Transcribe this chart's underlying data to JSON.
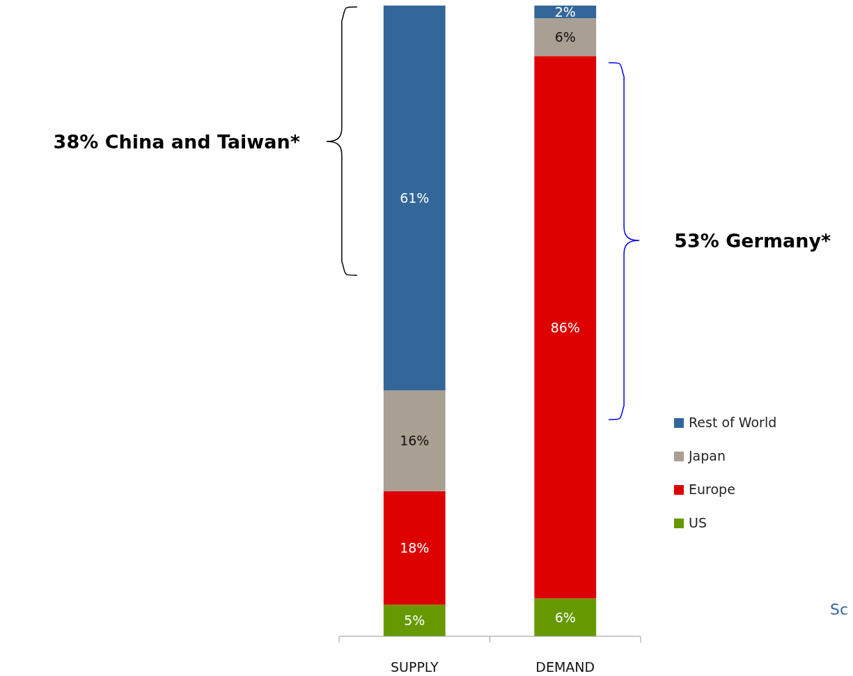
{
  "chart_data": {
    "type": "bar",
    "stacked": true,
    "categories": [
      "SUPPLY",
      "DEMAND"
    ],
    "series": [
      {
        "name": "US",
        "color": "#669900",
        "values": [
          5,
          6
        ],
        "value_labels": [
          "5%",
          "6%"
        ]
      },
      {
        "name": "Europe",
        "color": "#dd0000",
        "values": [
          18,
          86
        ],
        "value_labels": [
          "18%",
          "86%"
        ]
      },
      {
        "name": "Japan",
        "color": "#a99f92",
        "values": [
          16,
          6
        ],
        "value_labels": [
          "16%",
          "6%"
        ]
      },
      {
        "name": "Rest of World",
        "color": "#336699",
        "values": [
          61,
          2
        ],
        "value_labels": [
          "61%",
          "2%"
        ]
      }
    ],
    "ylim": [
      0,
      100
    ],
    "tick_labels": "x",
    "legend": "right",
    "annotations": [
      "38% China and Taiwan*",
      "53% Germany*",
      "Sc"
    ]
  }
}
